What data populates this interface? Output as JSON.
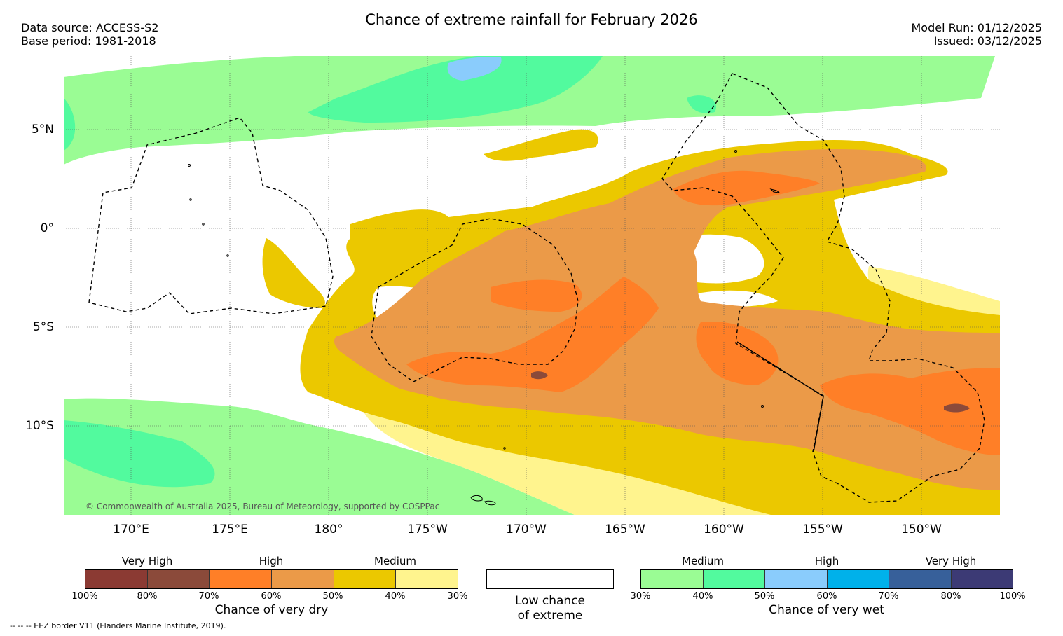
{
  "header": {
    "title": "Chance of extreme rainfall for February 2026",
    "data_source": "Data source: ACCESS-S2",
    "base_period": "Base period: 1981-2018",
    "model_run": "Model Run: 01/12/2025",
    "issued": "Issued: 03/12/2025"
  },
  "map": {
    "lat_labels": [
      "5°N",
      "0°",
      "5°S",
      "10°S"
    ],
    "lon_labels": [
      "170°E",
      "175°E",
      "180°",
      "175°W",
      "170°W",
      "165°W",
      "160°W",
      "155°W",
      "150°W"
    ],
    "copyright": "© Commonwealth of Australia 2025, Bureau of Meteorology, supported by COSPPac",
    "colors": {
      "dry_vhigh_100": "#8b3a33",
      "dry_vhigh_80": "#8b4a3a",
      "dry_high_70": "#ff7f27",
      "dry_high_60": "#eb9a48",
      "dry_medium_50": "#ebc800",
      "dry_medium_40": "#fff48e",
      "wet_medium_30": "#9afc94",
      "wet_medium_40": "#52fa9e",
      "wet_high_50": "#8accfc",
      "wet_high_60": "#00b1ea",
      "wet_vhigh_70": "#37609a",
      "wet_vhigh_80": "#3c3a75"
    }
  },
  "legend": {
    "dry": {
      "categories": [
        "Very High",
        "High",
        "Medium"
      ],
      "ticks": [
        "100%",
        "80%",
        "70%",
        "60%",
        "50%",
        "40%",
        "30%"
      ],
      "caption": "Chance of very dry",
      "colors": [
        "#8b3a33",
        "#8b4a3a",
        "#ff7f27",
        "#eb9a48",
        "#ebc800",
        "#fff48e"
      ]
    },
    "low": {
      "caption_line1": "Low chance",
      "caption_line2": "of extreme"
    },
    "wet": {
      "categories": [
        "Medium",
        "High",
        "Very High"
      ],
      "ticks": [
        "30%",
        "40%",
        "50%",
        "60%",
        "70%",
        "80%",
        "100%"
      ],
      "caption": "Chance of very wet",
      "colors": [
        "#9afc94",
        "#52fa9e",
        "#8accfc",
        "#00b1ea",
        "#37609a",
        "#3c3a75"
      ]
    }
  },
  "footer": {
    "eez_note": "--  --  -- EEZ border V11 (Flanders Marine Institute, 2019)."
  }
}
